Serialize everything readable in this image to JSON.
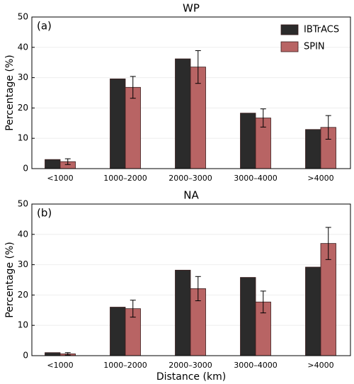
{
  "chart_data": [
    {
      "type": "bar",
      "title": "WP",
      "panel_label": "(a)",
      "y_label": "Percentage (%)",
      "categories": [
        "<1000",
        "1000–2000",
        "2000–3000",
        "3000–4000",
        ">4000"
      ],
      "series": [
        {
          "name": "IBTrACS",
          "color": "#2b2b2b",
          "values": [
            3.0,
            29.6,
            36.2,
            18.3,
            12.9
          ]
        },
        {
          "name": "SPIN",
          "color": "#b86464",
          "values": [
            2.3,
            26.8,
            33.5,
            16.7,
            13.6
          ],
          "errors": [
            0.95,
            3.6,
            5.4,
            3.0,
            3.9
          ]
        }
      ],
      "ylim": [
        0,
        50
      ],
      "yticks": [
        0,
        10,
        20,
        30,
        40,
        50
      ],
      "grid": true,
      "legend": "upper right"
    },
    {
      "type": "bar",
      "title": "NA",
      "panel_label": "(b)",
      "y_label": "Percentage (%)",
      "x_label": "Distance (km)",
      "categories": [
        "<1000",
        "1000–2000",
        "2000–3000",
        "3000–4000",
        ">4000"
      ],
      "series": [
        {
          "name": "IBTrACS",
          "color": "#2b2b2b",
          "values": [
            1.0,
            16.0,
            28.2,
            25.8,
            29.2
          ]
        },
        {
          "name": "SPIN",
          "color": "#b86464",
          "values": [
            0.6,
            15.5,
            22.1,
            17.7,
            37.0
          ],
          "errors": [
            0.4,
            2.8,
            4.0,
            3.6,
            5.3
          ]
        }
      ],
      "ylim": [
        0,
        50
      ],
      "yticks": [
        0,
        10,
        20,
        30,
        40,
        50
      ],
      "grid": true
    }
  ]
}
